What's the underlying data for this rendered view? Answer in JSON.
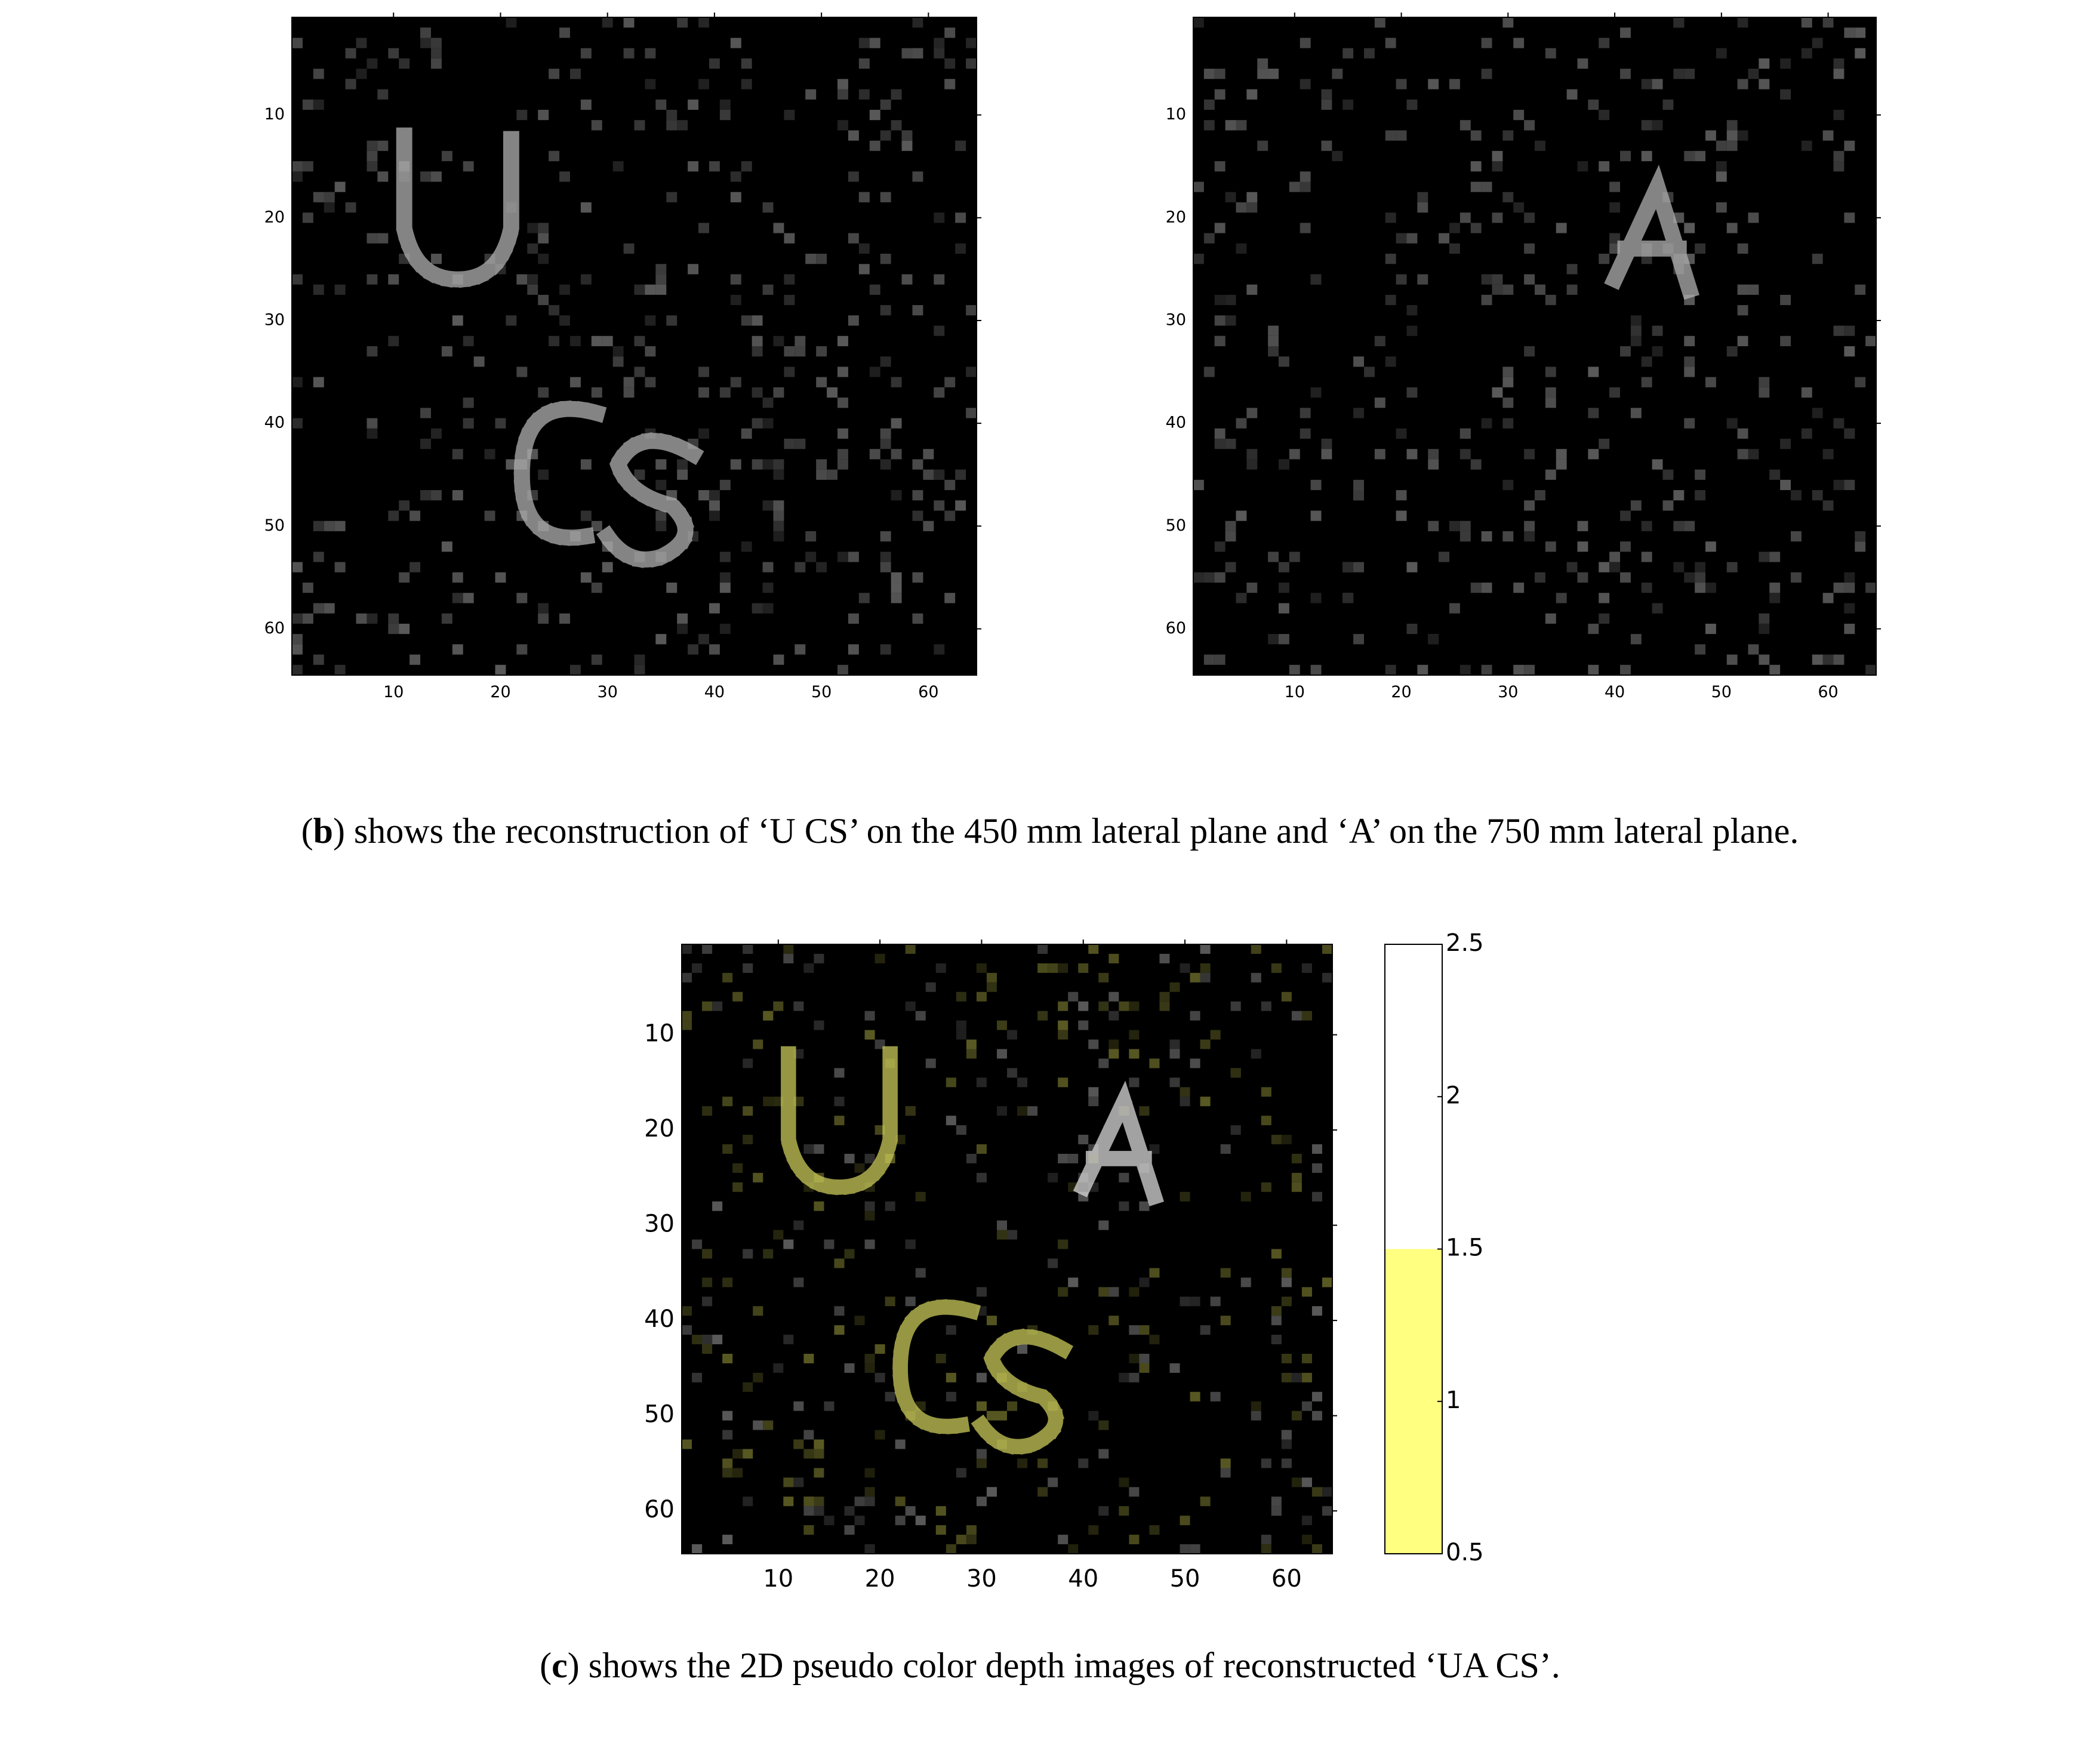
{
  "chart_data": [
    {
      "type": "image",
      "xlim": [
        0.5,
        64.5
      ],
      "ylim": [
        0.5,
        64.5
      ],
      "xticks": [
        10,
        20,
        30,
        40,
        50,
        60
      ],
      "yticks": [
        10,
        20,
        30,
        40,
        50,
        60
      ],
      "color": "#b0b0b0"
    },
    {
      "type": "image",
      "xlim": [
        0.5,
        64.5
      ],
      "ylim": [
        0.5,
        64.5
      ],
      "xticks": [
        10,
        20,
        30,
        40,
        50,
        60
      ],
      "yticks": [
        10,
        20,
        30,
        40,
        50,
        60
      ],
      "color": "#b0b0b0"
    },
    {
      "type": "image",
      "xlim": [
        0.5,
        64.5
      ],
      "ylim": [
        0.5,
        64.5
      ],
      "xticks": [
        10,
        20,
        30,
        40,
        50,
        60
      ],
      "yticks": [
        10,
        20,
        30,
        40,
        50,
        60
      ],
      "color": "#c8c85a"
    },
    {
      "type": "colorbar",
      "ylim": [
        0.5,
        2.5
      ],
      "yticks": [
        0.5,
        1,
        1.5,
        2,
        2.5
      ],
      "segments": [
        {
          "from": 0.5,
          "to": 1.5,
          "color": "#ffff80"
        },
        {
          "from": 1.5,
          "to": 2.5,
          "color": "#ffffff"
        }
      ]
    }
  ],
  "captions": [
    {
      "prefix": "(",
      "label": "b",
      "text": ") shows the reconstruction of ‘U CS’ on the 450 mm lateral plane and ‘A’ on the 750 mm lateral plane."
    },
    {
      "prefix": "(",
      "label": "c",
      "text": ") shows the 2D pseudo color depth images of reconstructed ‘UA CS’."
    }
  ]
}
